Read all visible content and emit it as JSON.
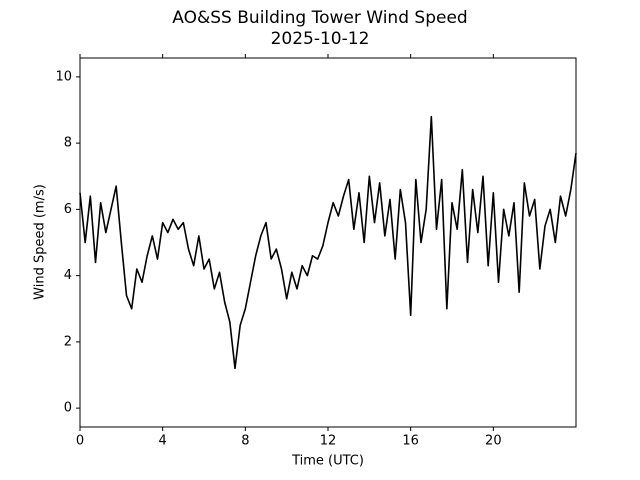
{
  "chart_data": {
    "type": "line",
    "title": "AO&SS Building Tower Wind Speed",
    "subtitle": "2025-10-12",
    "x_label": "Time (UTC)",
    "y_label": "Wind Speed (m/s)",
    "color": "#000000",
    "x": [
      0,
      0.25,
      0.5,
      0.75,
      1,
      1.25,
      1.5,
      1.75,
      2,
      2.25,
      2.5,
      2.75,
      3,
      3.25,
      3.5,
      3.75,
      4,
      4.25,
      4.5,
      4.75,
      5,
      5.25,
      5.5,
      5.75,
      6,
      6.25,
      6.5,
      6.75,
      7,
      7.25,
      7.5,
      7.75,
      8,
      8.25,
      8.5,
      8.75,
      9,
      9.25,
      9.5,
      9.75,
      10,
      10.25,
      10.5,
      10.75,
      11,
      11.25,
      11.5,
      11.75,
      12,
      12.25,
      12.5,
      12.75,
      13,
      13.25,
      13.5,
      13.75,
      14,
      14.25,
      14.5,
      14.75,
      15,
      15.25,
      15.5,
      15.75,
      16,
      16.25,
      16.5,
      16.75,
      17,
      17.25,
      17.5,
      17.75,
      18,
      18.25,
      18.5,
      18.75,
      19,
      19.25,
      19.5,
      19.75,
      20,
      20.25,
      20.5,
      20.75,
      21,
      21.25,
      21.5,
      21.75,
      22,
      22.25,
      22.5,
      22.75,
      23,
      23.25,
      23.5,
      23.75,
      24
    ],
    "values": [
      6.5,
      5.0,
      6.4,
      4.4,
      6.2,
      5.3,
      6.0,
      6.7,
      5.0,
      3.4,
      3.0,
      4.2,
      3.8,
      4.6,
      5.2,
      4.5,
      5.6,
      5.3,
      5.7,
      5.4,
      5.6,
      4.8,
      4.3,
      5.2,
      4.2,
      4.5,
      3.6,
      4.1,
      3.2,
      2.6,
      1.2,
      2.5,
      3.0,
      3.8,
      4.6,
      5.2,
      5.6,
      4.5,
      4.8,
      4.2,
      3.3,
      4.1,
      3.6,
      4.3,
      4.0,
      4.6,
      4.5,
      4.9,
      5.6,
      6.2,
      5.8,
      6.4,
      6.9,
      5.4,
      6.5,
      5.0,
      7.0,
      5.6,
      6.8,
      5.2,
      6.3,
      4.5,
      6.6,
      5.6,
      2.8,
      6.9,
      5.0,
      6.0,
      8.8,
      5.4,
      6.9,
      3.0,
      6.2,
      5.4,
      7.2,
      4.4,
      6.6,
      5.3,
      7.0,
      4.3,
      6.5,
      3.8,
      6.0,
      5.2,
      6.2,
      3.5,
      6.8,
      5.8,
      6.3,
      4.2,
      5.5,
      6.0,
      5.0,
      6.4,
      5.8,
      6.6,
      7.7
    ],
    "xlim": [
      0,
      24
    ],
    "ylim": [
      -0.57,
      10.57
    ],
    "xticks": [
      0,
      4,
      8,
      12,
      16,
      20
    ],
    "yticks": [
      0,
      2,
      4,
      6,
      8,
      10
    ]
  }
}
